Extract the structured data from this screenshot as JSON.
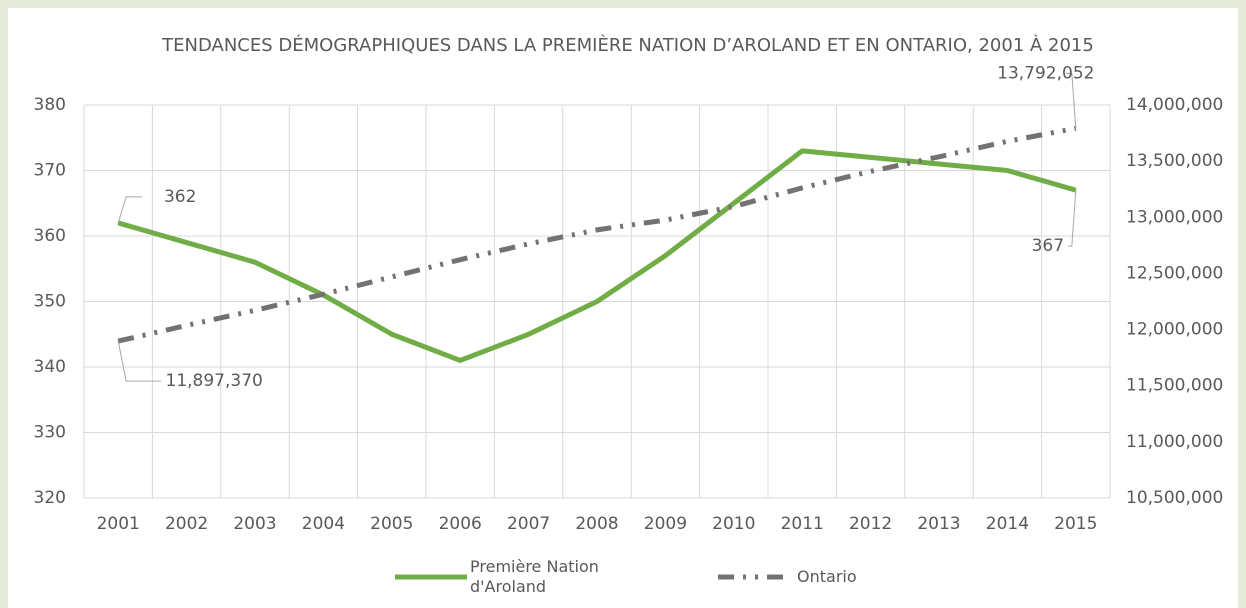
{
  "chart_data": {
    "type": "line",
    "title": "TENDANCES DÉMOGRAPHIQUES DANS LA PREMIÈRE NATION D’AROLAND ET EN ONTARIO, 2001 À 2015",
    "categories": [
      "2001",
      "2002",
      "2003",
      "2004",
      "2005",
      "2006",
      "2007",
      "2008",
      "2009",
      "2010",
      "2011",
      "2012",
      "2013",
      "2014",
      "2015"
    ],
    "series": [
      {
        "name": "Première Nation d'Aroland",
        "color": "#70ad47",
        "values": [
          362,
          359,
          356,
          351,
          345,
          341,
          345,
          350,
          357,
          365,
          373,
          372,
          371,
          370,
          367
        ],
        "value_labels": [
          "362",
          null,
          null,
          null,
          null,
          null,
          null,
          null,
          null,
          null,
          null,
          null,
          null,
          null,
          "367"
        ]
      },
      {
        "name": "Ontario",
        "color": "#767171",
        "axis": "y2",
        "values": [
          11897370,
          12036900,
          12171300,
          12314600,
          12469400,
          12622600,
          12763000,
          12887800,
          12975400,
          13096000,
          13261900,
          13408700,
          13538900,
          13676300,
          13792052
        ],
        "value_labels": [
          "11,897,370",
          null,
          null,
          null,
          null,
          null,
          null,
          null,
          null,
          null,
          null,
          null,
          null,
          null,
          "13,792,052"
        ]
      }
    ],
    "ylim": [
      320,
      380
    ],
    "yticks": [
      320,
      330,
      340,
      350,
      360,
      370,
      380
    ],
    "y2lim": [
      10500000,
      14000000
    ],
    "y2ticks": [
      {
        "value": 10500000,
        "label": "10,500,000"
      },
      {
        "value": 11000000,
        "label": "11,000,000"
      },
      {
        "value": 11500000,
        "label": "11,500,000"
      },
      {
        "value": 12000000,
        "label": "12,000,000"
      },
      {
        "value": 12500000,
        "label": "12,500,000"
      },
      {
        "value": 13000000,
        "label": "13,000,000"
      },
      {
        "value": 13500000,
        "label": "13,500,000"
      },
      {
        "value": 14000000,
        "label": "14,000,000"
      }
    ],
    "grid": true,
    "legend": "bottom"
  }
}
